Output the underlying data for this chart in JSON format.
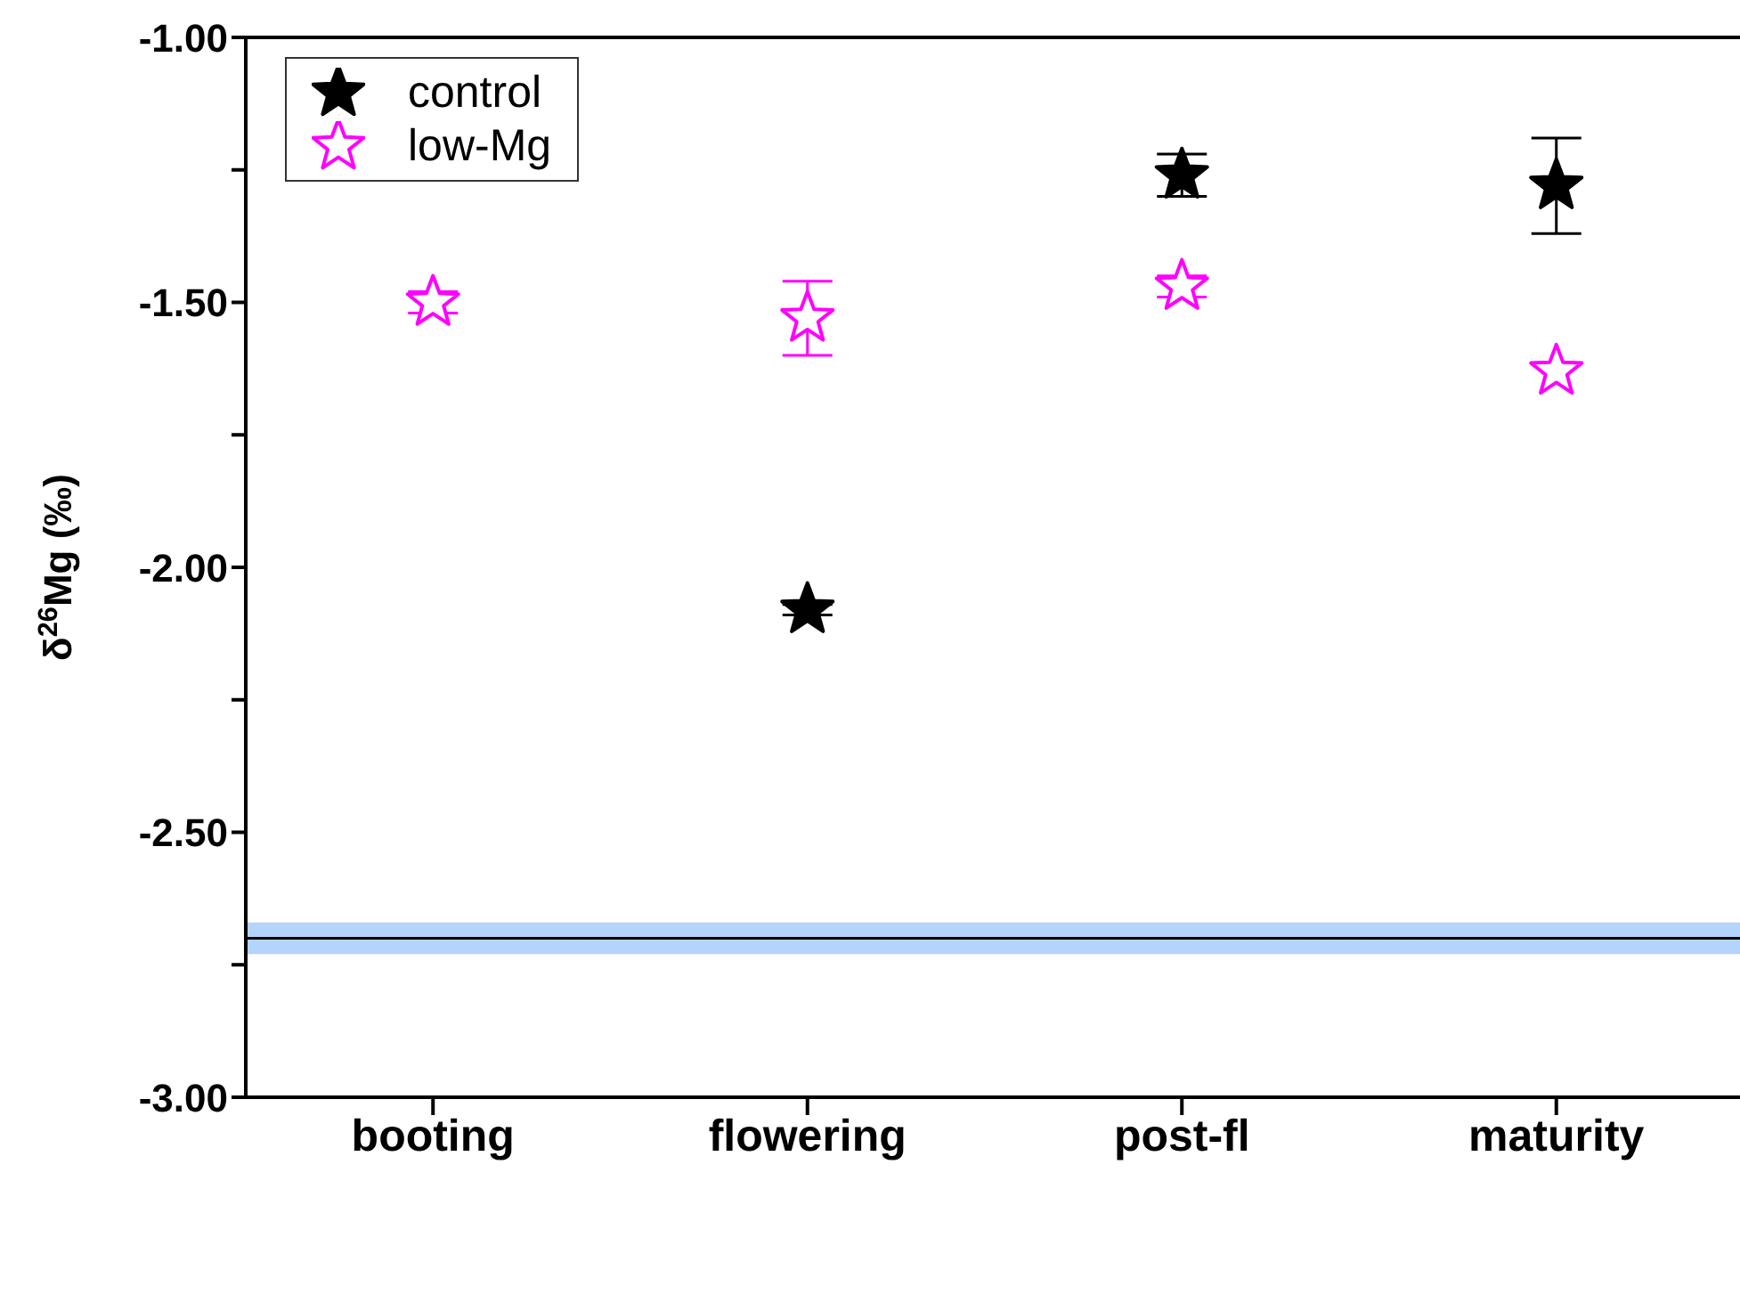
{
  "chart_data": {
    "type": "scatter",
    "ylabel": "δ$^{26}$Mg (‰)",
    "categories": [
      "booting",
      "flowering",
      "post-fl",
      "maturity"
    ],
    "series": [
      {
        "name": "control",
        "color": "#000000",
        "values": [
          null,
          -2.08,
          -1.26,
          -1.28
        ],
        "errors": [
          null,
          0.01,
          0.04,
          0.09
        ]
      },
      {
        "name": "low-Mg",
        "color": "#ff00ff",
        "values": [
          -1.5,
          -1.53,
          -1.47,
          -1.63
        ],
        "errors": [
          0.02,
          0.07,
          0.02,
          null
        ]
      }
    ],
    "ylim": [
      -3,
      -1
    ],
    "yticks": [
      {
        "value": -3,
        "label": "-3.00"
      },
      {
        "value": -2.75,
        "label": null
      },
      {
        "value": -2.5,
        "label": "-2.50"
      },
      {
        "value": -2.25,
        "label": null
      },
      {
        "value": -2,
        "label": "-2.00"
      },
      {
        "value": -1.75,
        "label": null
      },
      {
        "value": -1.5,
        "label": "-1.50"
      },
      {
        "value": -1.25,
        "label": null
      },
      {
        "value": -1,
        "label": "-1.00"
      }
    ],
    "ref_lines": [
      {
        "axis": "y",
        "value": -2.7,
        "color": "#000000"
      }
    ],
    "bands": [
      {
        "axis": "y",
        "from": -2.73,
        "to": -2.67,
        "color": "#b3d4fc"
      }
    ],
    "marker": "star",
    "legend": "top left",
    "grid": false
  }
}
